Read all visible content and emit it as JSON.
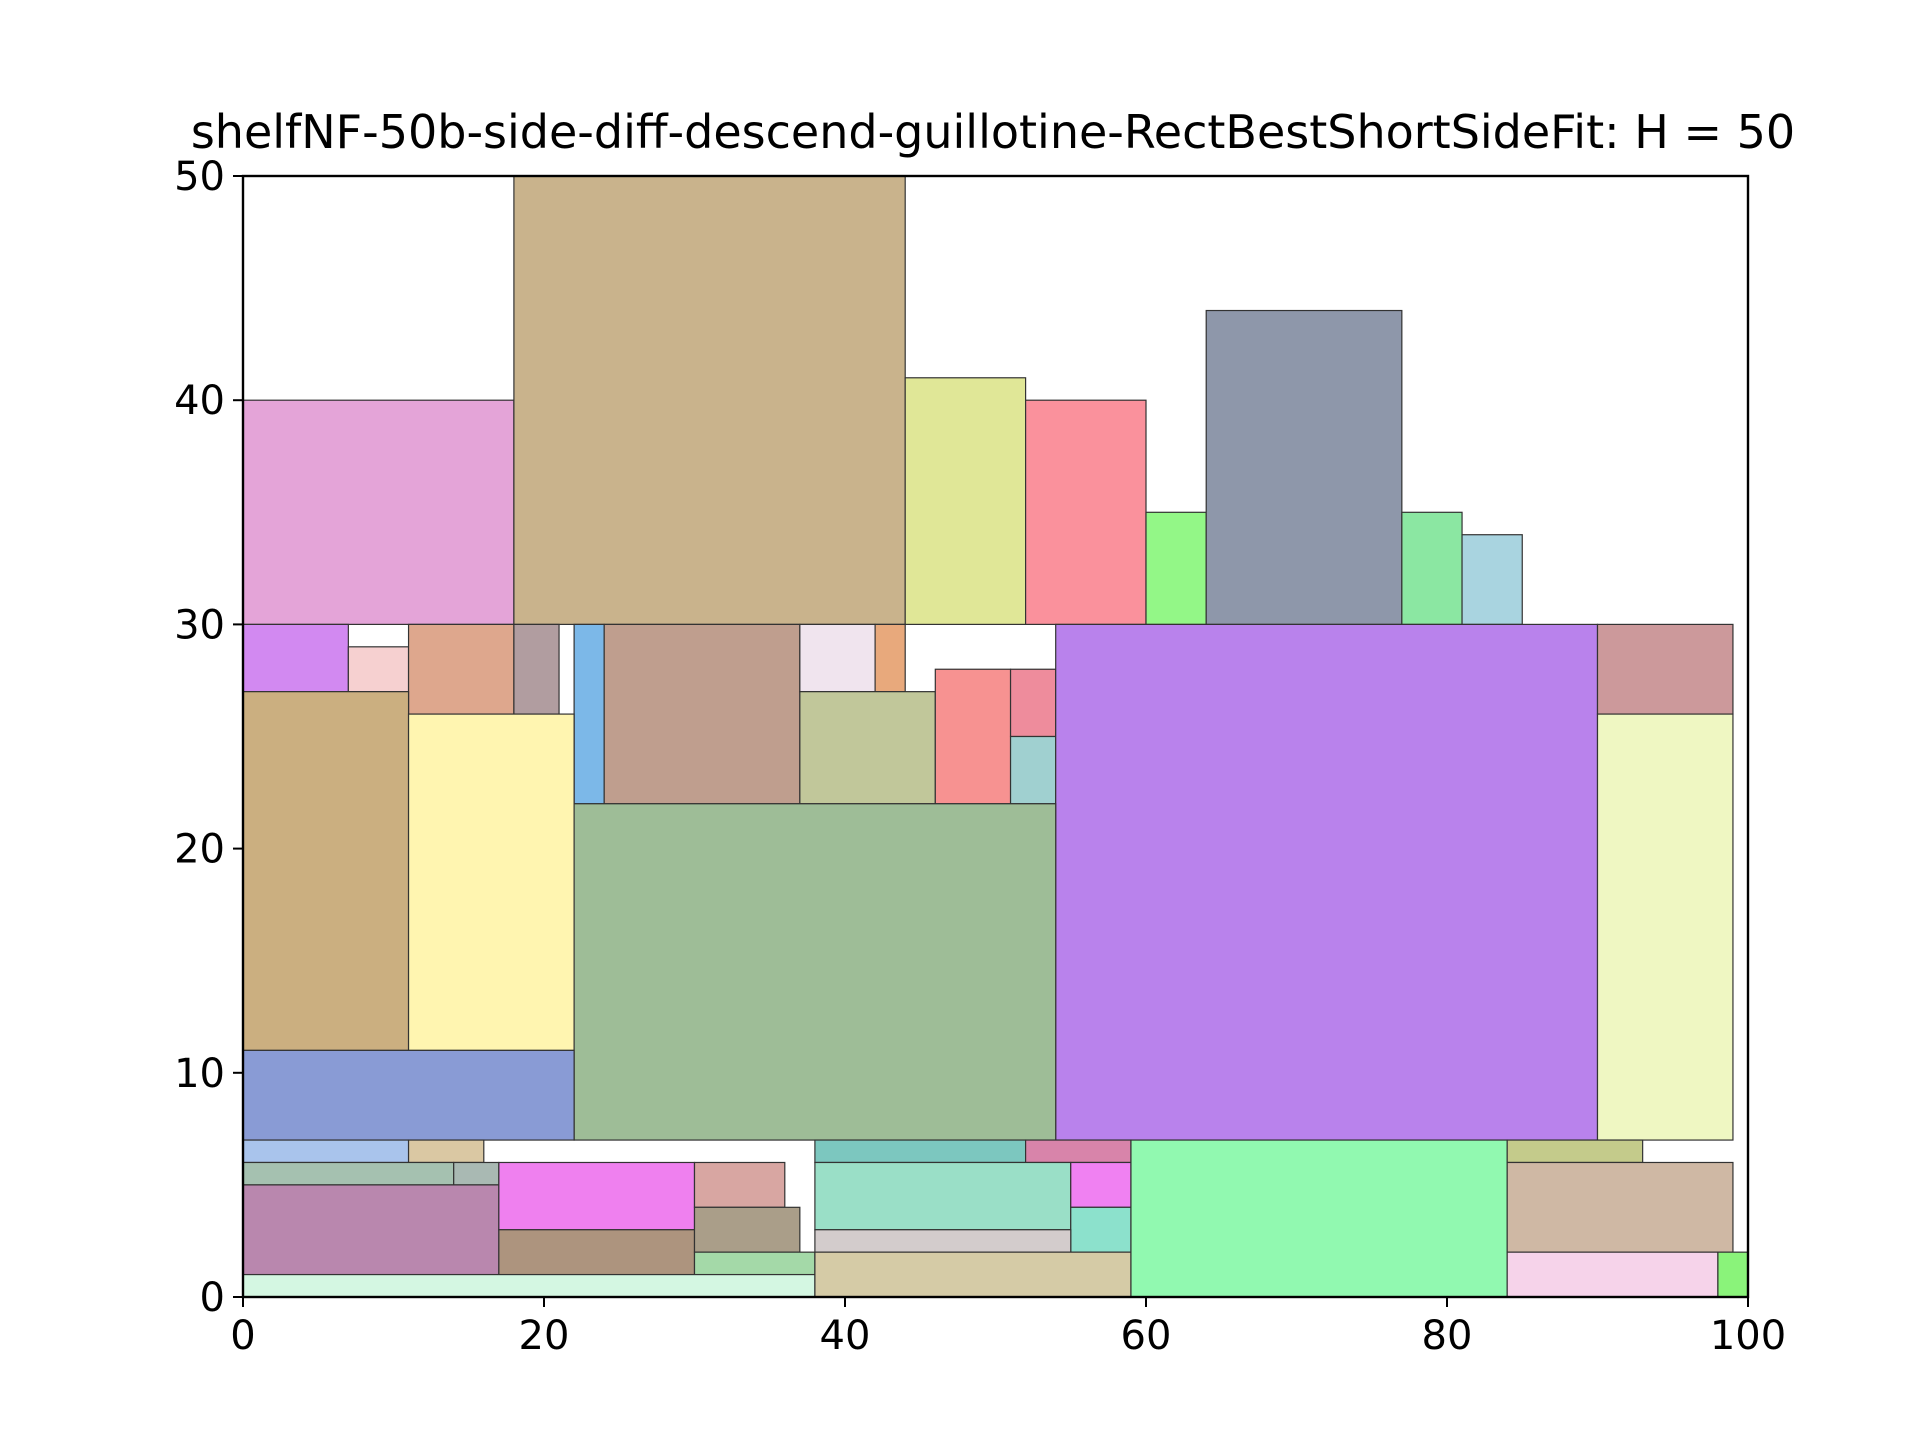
{
  "chart_data": {
    "type": "rectangle-packing",
    "title": "shelfNF-50b-side-diff-descend-guillotine-RectBestShortSideFit: H = 50",
    "xlim": [
      0,
      100
    ],
    "ylim": [
      0,
      50
    ],
    "xticks": [
      "0",
      "20",
      "40",
      "60",
      "80",
      "100"
    ],
    "yticks": [
      "0",
      "10",
      "20",
      "30",
      "40",
      "50"
    ],
    "grid": false,
    "rects": [
      {
        "x": 0,
        "y": 30,
        "w": 18,
        "h": 10,
        "color": "#e4a4d8"
      },
      {
        "x": 18,
        "y": 30,
        "w": 26,
        "h": 20,
        "color": "#c9b38c"
      },
      {
        "x": 44,
        "y": 30,
        "w": 8,
        "h": 11,
        "color": "#e0e797"
      },
      {
        "x": 52,
        "y": 30,
        "w": 8,
        "h": 10,
        "color": "#fa919c"
      },
      {
        "x": 60,
        "y": 30,
        "w": 4,
        "h": 5,
        "color": "#93f787"
      },
      {
        "x": 64,
        "y": 30,
        "w": 13,
        "h": 14,
        "color": "#8e97aa"
      },
      {
        "x": 77,
        "y": 30,
        "w": 4,
        "h": 5,
        "color": "#8be7a2"
      },
      {
        "x": 81,
        "y": 30,
        "w": 4,
        "h": 4,
        "color": "#a9d4e0"
      },
      {
        "x": 0,
        "y": 27,
        "w": 7,
        "h": 3,
        "color": "#d289f1"
      },
      {
        "x": 7,
        "y": 27,
        "w": 4,
        "h": 2,
        "color": "#f6d0d0"
      },
      {
        "x": 11,
        "y": 26,
        "w": 7,
        "h": 4,
        "color": "#dea78d"
      },
      {
        "x": 18,
        "y": 26,
        "w": 3,
        "h": 4,
        "color": "#b19da0"
      },
      {
        "x": 22,
        "y": 22,
        "w": 2,
        "h": 8,
        "color": "#7cb8e8"
      },
      {
        "x": 24,
        "y": 22,
        "w": 13,
        "h": 8,
        "color": "#bf9e8e"
      },
      {
        "x": 37,
        "y": 27,
        "w": 5,
        "h": 3,
        "color": "#f0e4ee"
      },
      {
        "x": 42,
        "y": 27,
        "w": 2,
        "h": 3,
        "color": "#e8a97c"
      },
      {
        "x": 37,
        "y": 22,
        "w": 9,
        "h": 5,
        "color": "#c1c79a"
      },
      {
        "x": 46,
        "y": 22,
        "w": 5,
        "h": 6,
        "color": "#f79291"
      },
      {
        "x": 51,
        "y": 25,
        "w": 3,
        "h": 3,
        "color": "#ee8c9c"
      },
      {
        "x": 51,
        "y": 22,
        "w": 3,
        "h": 3,
        "color": "#a0d0d0"
      },
      {
        "x": 54,
        "y": 7,
        "w": 36,
        "h": 23,
        "color": "#b982ec"
      },
      {
        "x": 90,
        "y": 26,
        "w": 9,
        "h": 4,
        "color": "#cc999b"
      },
      {
        "x": 90,
        "y": 7,
        "w": 9,
        "h": 19,
        "color": "#eff7c2"
      },
      {
        "x": 0,
        "y": 11,
        "w": 11,
        "h": 16,
        "color": "#cbaf80"
      },
      {
        "x": 11,
        "y": 11,
        "w": 11,
        "h": 15,
        "color": "#fff5b0"
      },
      {
        "x": 22,
        "y": 7,
        "w": 32,
        "h": 15,
        "color": "#9ebd97"
      },
      {
        "x": 0,
        "y": 7,
        "w": 22,
        "h": 4,
        "color": "#899bd5"
      },
      {
        "x": 0,
        "y": 6,
        "w": 11,
        "h": 1,
        "color": "#a9c4ec"
      },
      {
        "x": 11,
        "y": 6,
        "w": 5,
        "h": 1,
        "color": "#dac8a3"
      },
      {
        "x": 0,
        "y": 5,
        "w": 14,
        "h": 1,
        "color": "#a5c1b0"
      },
      {
        "x": 14,
        "y": 5,
        "w": 3,
        "h": 1,
        "color": "#a9b9b3"
      },
      {
        "x": 0,
        "y": 1,
        "w": 17,
        "h": 4,
        "color": "#b987ae"
      },
      {
        "x": 17,
        "y": 3,
        "w": 13,
        "h": 3,
        "color": "#ef80ef"
      },
      {
        "x": 17,
        "y": 1,
        "w": 13,
        "h": 2,
        "color": "#ad947e"
      },
      {
        "x": 30,
        "y": 4,
        "w": 6,
        "h": 2,
        "color": "#d8a6a2"
      },
      {
        "x": 30,
        "y": 2,
        "w": 7,
        "h": 2,
        "color": "#aa9e89"
      },
      {
        "x": 30,
        "y": 1,
        "w": 8,
        "h": 1,
        "color": "#a4d9a8"
      },
      {
        "x": 0,
        "y": 0,
        "w": 38,
        "h": 1,
        "color": "#d4f7e2"
      },
      {
        "x": 38,
        "y": 6,
        "w": 14,
        "h": 1,
        "color": "#7cc7bf"
      },
      {
        "x": 52,
        "y": 6,
        "w": 7,
        "h": 1,
        "color": "#d884aa"
      },
      {
        "x": 38,
        "y": 3,
        "w": 17,
        "h": 3,
        "color": "#9adfc7"
      },
      {
        "x": 55,
        "y": 4,
        "w": 4,
        "h": 2,
        "color": "#f081f2"
      },
      {
        "x": 55,
        "y": 2,
        "w": 4,
        "h": 2,
        "color": "#8ce1cc"
      },
      {
        "x": 38,
        "y": 2,
        "w": 17,
        "h": 1,
        "color": "#d3cccc"
      },
      {
        "x": 38,
        "y": 0,
        "w": 21,
        "h": 2,
        "color": "#d5cba6"
      },
      {
        "x": 59,
        "y": 0,
        "w": 25,
        "h": 7,
        "color": "#91f9b0"
      },
      {
        "x": 84,
        "y": 6,
        "w": 9,
        "h": 1,
        "color": "#c4cb8b"
      },
      {
        "x": 84,
        "y": 2,
        "w": 15,
        "h": 4,
        "color": "#cfb8a4"
      },
      {
        "x": 84,
        "y": 0,
        "w": 14,
        "h": 2,
        "color": "#f6d3ea"
      },
      {
        "x": 98,
        "y": 0,
        "w": 2,
        "h": 2,
        "color": "#8af37a"
      }
    ]
  }
}
